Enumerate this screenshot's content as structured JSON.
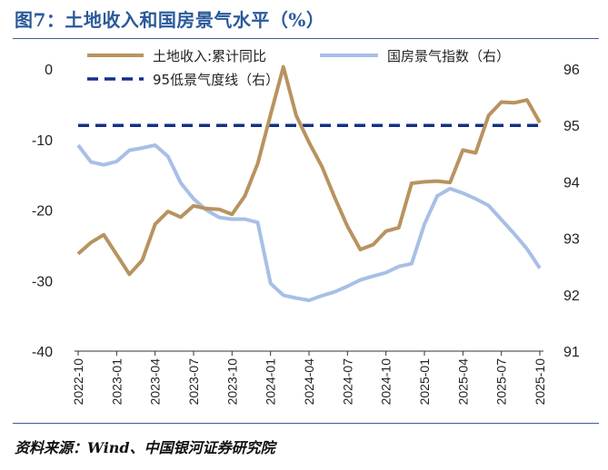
{
  "title": "图7：土地收入和国房景气水平（%）",
  "source": "资料来源：Wind、中国银河证券研究院",
  "chart_data": {
    "type": "line",
    "title": "土地收入和国房景气水平（%）",
    "x": [
      "2022-10",
      "2022-11",
      "2022-12",
      "2023-01",
      "2023-02",
      "2023-03",
      "2023-04",
      "2023-05",
      "2023-06",
      "2023-07",
      "2023-08",
      "2023-09",
      "2023-10",
      "2023-11",
      "2023-12",
      "2024-01",
      "2024-02",
      "2024-03",
      "2024-04",
      "2024-05",
      "2024-06",
      "2024-07",
      "2024-08",
      "2024-09",
      "2024-10",
      "2024-11",
      "2024-12",
      "2025-01",
      "2025-02",
      "2025-03",
      "2025-04",
      "2025-05",
      "2025-06",
      "2025-07",
      "2025-08",
      "2025-09",
      "2025-10"
    ],
    "xticks": [
      "2022-10",
      "2023-01",
      "2023-04",
      "2023-07",
      "2023-10",
      "2024-01",
      "2024-04",
      "2024-07",
      "2024-10",
      "2025-01",
      "2025-04",
      "2025-07",
      "2025-10"
    ],
    "y_left": {
      "ylim": [
        -40,
        0
      ],
      "ticks": [
        0,
        -10,
        -20,
        -30,
        -40
      ]
    },
    "y_right": {
      "ylim": [
        91,
        96
      ],
      "ticks": [
        96,
        95,
        94,
        93,
        92,
        91
      ]
    },
    "series": [
      {
        "name": "土地收入:累计同比",
        "axis": "left",
        "color": "#b8935f",
        "style": "solid",
        "values": [
          -26.2,
          -24.6,
          -23.5,
          -26.3,
          -29.1,
          -27.1,
          -22.0,
          -20.2,
          -21.0,
          -19.4,
          -19.8,
          -19.9,
          -20.6,
          -18.0,
          -13.4,
          -6.5,
          0.3,
          -6.6,
          -10.4,
          -13.8,
          -18.2,
          -22.3,
          -25.6,
          -24.9,
          -23.0,
          -22.5,
          -16.2,
          -16.0,
          -15.9,
          -16.1,
          -11.5,
          -11.9,
          -6.6,
          -4.7,
          -4.8,
          -4.4,
          -7.6
        ]
      },
      {
        "name": "国房景气指数（右）",
        "axis": "right",
        "color": "#a8bfe6",
        "style": "solid",
        "values": [
          94.65,
          94.35,
          94.3,
          94.36,
          94.56,
          94.6,
          94.65,
          94.45,
          93.98,
          93.7,
          93.5,
          93.37,
          93.34,
          93.34,
          93.28,
          92.2,
          91.99,
          91.94,
          91.9,
          91.98,
          92.05,
          92.15,
          92.26,
          92.33,
          92.39,
          92.5,
          92.55,
          93.25,
          93.75,
          93.88,
          93.8,
          93.7,
          93.58,
          93.33,
          93.08,
          92.81,
          92.47
        ]
      },
      {
        "name": "95低景气度线（右）",
        "axis": "right",
        "color": "#13308a",
        "style": "dashed",
        "values": [
          95,
          95,
          95,
          95,
          95,
          95,
          95,
          95,
          95,
          95,
          95,
          95,
          95,
          95,
          95,
          95,
          95,
          95,
          95,
          95,
          95,
          95,
          95,
          95,
          95,
          95,
          95,
          95,
          95,
          95,
          95,
          95,
          95,
          95,
          95,
          95,
          95
        ]
      }
    ],
    "legend": [
      "土地收入:累计同比",
      "国房景气指数（右）",
      "95低景气度线（右）"
    ],
    "legend_position": "top"
  }
}
